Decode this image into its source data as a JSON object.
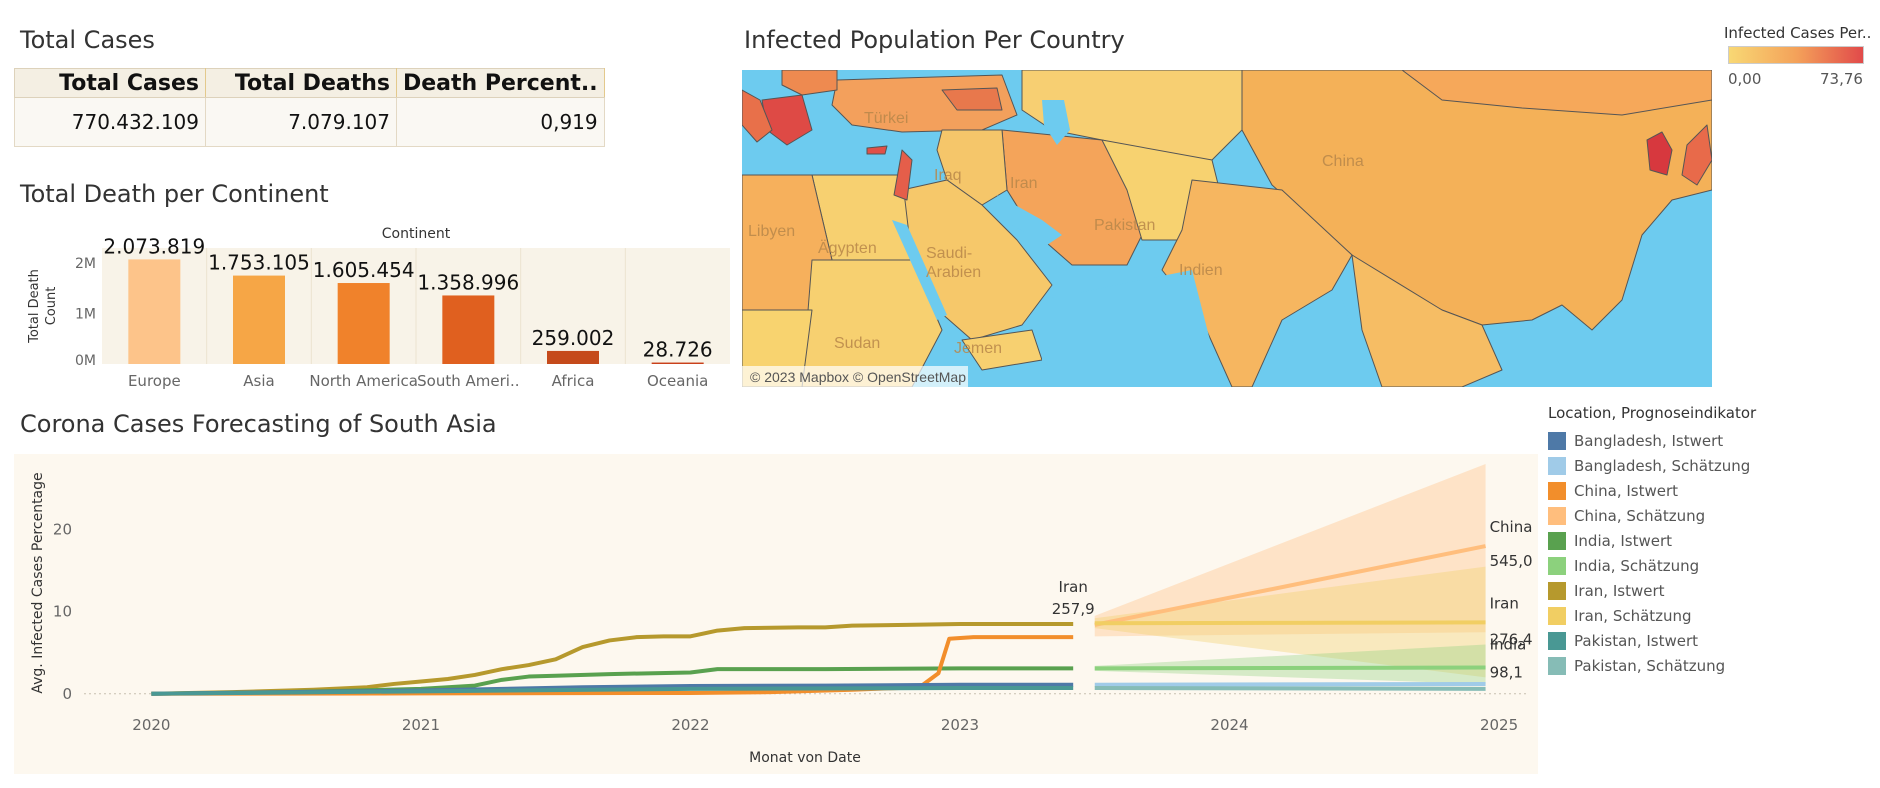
{
  "kpi": {
    "title": "Total Cases",
    "headers": [
      "Total Cases",
      "Total Deaths",
      "Death Percent.."
    ],
    "values": [
      "770.432.109",
      "7.079.107",
      "0,919"
    ]
  },
  "map": {
    "title": "Infected Population Per Country",
    "legend_title": "Infected Cases Per..",
    "legend_min": "0,00",
    "legend_max": "73,76",
    "attribution": "© 2023 Mapbox © OpenStreetMap",
    "labels": [
      "Türkei",
      "Iraq",
      "Iran",
      "China",
      "Libyen",
      "Ägypten",
      "Saudi-\nArabien",
      "Pakistan",
      "Indien",
      "Sudan",
      "Jemen"
    ],
    "colors": {
      "sea": "#6dcbef",
      "low": "#f8d874",
      "mid": "#f4a25a",
      "high": "#e14a4a"
    }
  },
  "chart_data": [
    {
      "type": "bar",
      "title": "Total Death per Continent",
      "header": "Continent",
      "ylabel": "Total Death Count",
      "ytick_labels": [
        "0M",
        "1M",
        "2M"
      ],
      "ylim": [
        0,
        2300000
      ],
      "categories": [
        "Europe",
        "Asia",
        "North America",
        "South Ameri..",
        "Africa",
        "Oceania"
      ],
      "values": [
        2073819,
        1753105,
        1605454,
        1358996,
        259002,
        28726
      ],
      "data_labels": [
        "2.073.819",
        "1.753.105",
        "1.605.454",
        "1.358.996",
        "259.002",
        "28.726"
      ],
      "colors": [
        "#fdc48a",
        "#f6a646",
        "#f0822b",
        "#e0601f",
        "#c54a1b",
        "#c9401a"
      ]
    },
    {
      "type": "line",
      "title": "Corona Cases Forecasting of South Asia",
      "xlabel": "Monat von Date",
      "ylabel": "Avg. Infected Cases Percentage",
      "xtick_labels": [
        "2020",
        "2021",
        "2022",
        "2023",
        "2024",
        "2025"
      ],
      "ytick_labels": [
        "0",
        "10",
        "20"
      ],
      "xlim": [
        2019.75,
        2025.1
      ],
      "ylim": [
        -1,
        28
      ],
      "legend_title": "Location, Prognoseindikator",
      "legend": [
        {
          "name": "Bangladesh, Istwert",
          "color": "#4e79a7"
        },
        {
          "name": "Bangladesh, Schätzung",
          "color": "#a0cbe8"
        },
        {
          "name": "China, Istwert",
          "color": "#f28e2b"
        },
        {
          "name": "China, Schätzung",
          "color": "#ffbe7d"
        },
        {
          "name": "India, Istwert",
          "color": "#59a14f"
        },
        {
          "name": "India, Schätzung",
          "color": "#8cd17d"
        },
        {
          "name": "Iran, Istwert",
          "color": "#b6992d"
        },
        {
          "name": "Iran, Schätzung",
          "color": "#f1ce63"
        },
        {
          "name": "Pakistan, Istwert",
          "color": "#499894"
        },
        {
          "name": "Pakistan, Schätzung",
          "color": "#86bcb6"
        }
      ],
      "series": [
        {
          "name": "Iran, Istwert",
          "color": "#b6992d",
          "x": [
            2020.0,
            2020.3,
            2020.6,
            2020.8,
            2020.9,
            2021.0,
            2021.1,
            2021.2,
            2021.3,
            2021.4,
            2021.5,
            2021.6,
            2021.7,
            2021.8,
            2021.9,
            2022.0,
            2022.1,
            2022.2,
            2022.4,
            2022.5,
            2022.6,
            2022.8,
            2023.0,
            2023.2,
            2023.42
          ],
          "y": [
            0,
            0.2,
            0.5,
            0.8,
            1.2,
            1.5,
            1.8,
            2.3,
            3.0,
            3.5,
            4.2,
            5.7,
            6.5,
            6.9,
            7.0,
            7.0,
            7.7,
            8.0,
            8.1,
            8.1,
            8.3,
            8.4,
            8.5,
            8.5,
            8.5
          ]
        },
        {
          "name": "India, Istwert",
          "color": "#59a14f",
          "x": [
            2020.0,
            2020.5,
            2021.0,
            2021.2,
            2021.3,
            2021.4,
            2021.5,
            2021.7,
            2022.0,
            2022.1,
            2022.5,
            2023.0,
            2023.42
          ],
          "y": [
            0,
            0.2,
            0.6,
            1.0,
            1.7,
            2.1,
            2.2,
            2.4,
            2.6,
            3.0,
            3.0,
            3.1,
            3.1
          ]
        },
        {
          "name": "China, Istwert",
          "color": "#f28e2b",
          "x": [
            2020.0,
            2021.0,
            2022.0,
            2022.3,
            2022.6,
            2022.85,
            2022.92,
            2022.96,
            2023.05,
            2023.42
          ],
          "y": [
            0,
            0.05,
            0.1,
            0.2,
            0.5,
            0.8,
            2.5,
            6.7,
            6.9,
            6.9
          ]
        },
        {
          "name": "Bangladesh, Istwert",
          "color": "#4e79a7",
          "x": [
            2020.0,
            2021.0,
            2021.6,
            2022.0,
            2022.5,
            2023.0,
            2023.42
          ],
          "y": [
            0,
            0.4,
            0.8,
            0.95,
            1.0,
            1.1,
            1.1
          ]
        },
        {
          "name": "Pakistan, Istwert",
          "color": "#499894",
          "x": [
            2020.0,
            2021.0,
            2022.0,
            2023.0,
            2023.42
          ],
          "y": [
            0,
            0.3,
            0.6,
            0.7,
            0.7
          ]
        },
        {
          "name": "China, Schätzung",
          "color": "#ffbe7d",
          "x": [
            2023.5,
            2024.95
          ],
          "y": [
            8.4,
            18.0
          ],
          "band_low": [
            7.0,
            7.5
          ],
          "band_high": [
            9.5,
            28.0
          ]
        },
        {
          "name": "Iran, Schätzung",
          "color": "#f1ce63",
          "x": [
            2023.5,
            2024.95
          ],
          "y": [
            8.6,
            8.7
          ],
          "band_low": [
            8.0,
            2.0
          ],
          "band_high": [
            9.2,
            15.5
          ]
        },
        {
          "name": "India, Schätzung",
          "color": "#8cd17d",
          "x": [
            2023.5,
            2024.95
          ],
          "y": [
            3.1,
            3.2
          ],
          "band_low": [
            2.8,
            1.2
          ],
          "band_high": [
            3.4,
            6.0
          ]
        },
        {
          "name": "Bangladesh, Schätzung",
          "color": "#a0cbe8",
          "x": [
            2023.5,
            2024.95
          ],
          "y": [
            1.1,
            1.2
          ]
        },
        {
          "name": "Pakistan, Schätzung",
          "color": "#86bcb6",
          "x": [
            2023.5,
            2024.95
          ],
          "y": [
            0.7,
            0.6
          ]
        }
      ],
      "annotations": [
        {
          "name": "Iran",
          "value": "257,9",
          "x": 2023.42,
          "y": 8.5
        },
        {
          "name": "China",
          "value": "545,0",
          "x": 2024.95,
          "y": 18.0
        },
        {
          "name": "Iran",
          "value": "276,4",
          "x": 2024.95,
          "y": 8.7
        },
        {
          "name": "India",
          "value": "98,1",
          "x": 2024.95,
          "y": 3.2
        }
      ]
    }
  ]
}
